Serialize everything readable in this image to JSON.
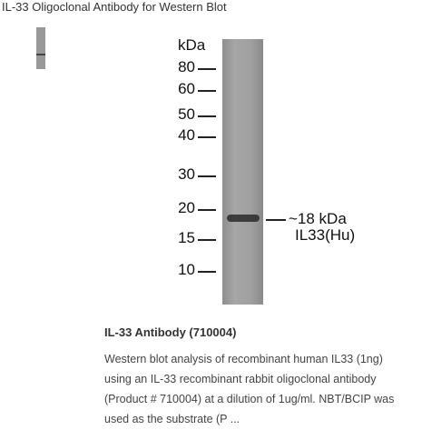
{
  "header": {
    "title": "IL-33 Oligoclonal Antibody for Western Blot"
  },
  "blot": {
    "unit_label": "kDa",
    "markers": [
      "80",
      "60",
      "50",
      "40",
      "30",
      "20",
      "15",
      "10"
    ],
    "band_label": "~18 kDa",
    "band_target": "IL33(Hu)"
  },
  "caption": {
    "title": "IL-33 Antibody (710004)",
    "lines": [
      "Western blot analysis of recombinant human IL33 (1ng)",
      "using an IL-33 recombinant rabbit oligoclonal antibody",
      "(Product # 710004) at a dilution of 1ug/ml. NBT/BCIP was",
      "used as the substrate (P ..."
    ]
  }
}
